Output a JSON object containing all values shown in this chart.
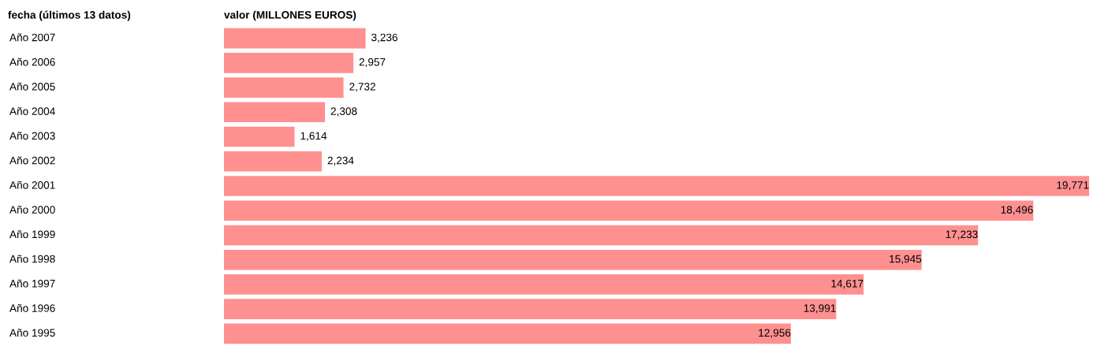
{
  "chart_data": {
    "type": "bar",
    "orientation": "horizontal",
    "ylabel": "fecha (últimos 13 datos)",
    "xlabel": "valor (MILLONES EUROS)",
    "categories": [
      "Año 2007",
      "Año 2006",
      "Año 2005",
      "Año 2004",
      "Año 2003",
      "Año 2002",
      "Año 2001",
      "Año 2000",
      "Año 1999",
      "Año 1998",
      "Año 1997",
      "Año 1996",
      "Año 1995"
    ],
    "values": [
      3236,
      2957,
      2732,
      2308,
      1614,
      2234,
      19771,
      18496,
      17233,
      15945,
      14617,
      13991,
      12956
    ],
    "value_labels": [
      "3,236",
      "2,957",
      "2,732",
      "2,308",
      "1,614",
      "2,234",
      "19,771",
      "18,496",
      "17,233",
      "15,945",
      "14,617",
      "13,991",
      "12,956"
    ],
    "color": "#ff9090"
  }
}
